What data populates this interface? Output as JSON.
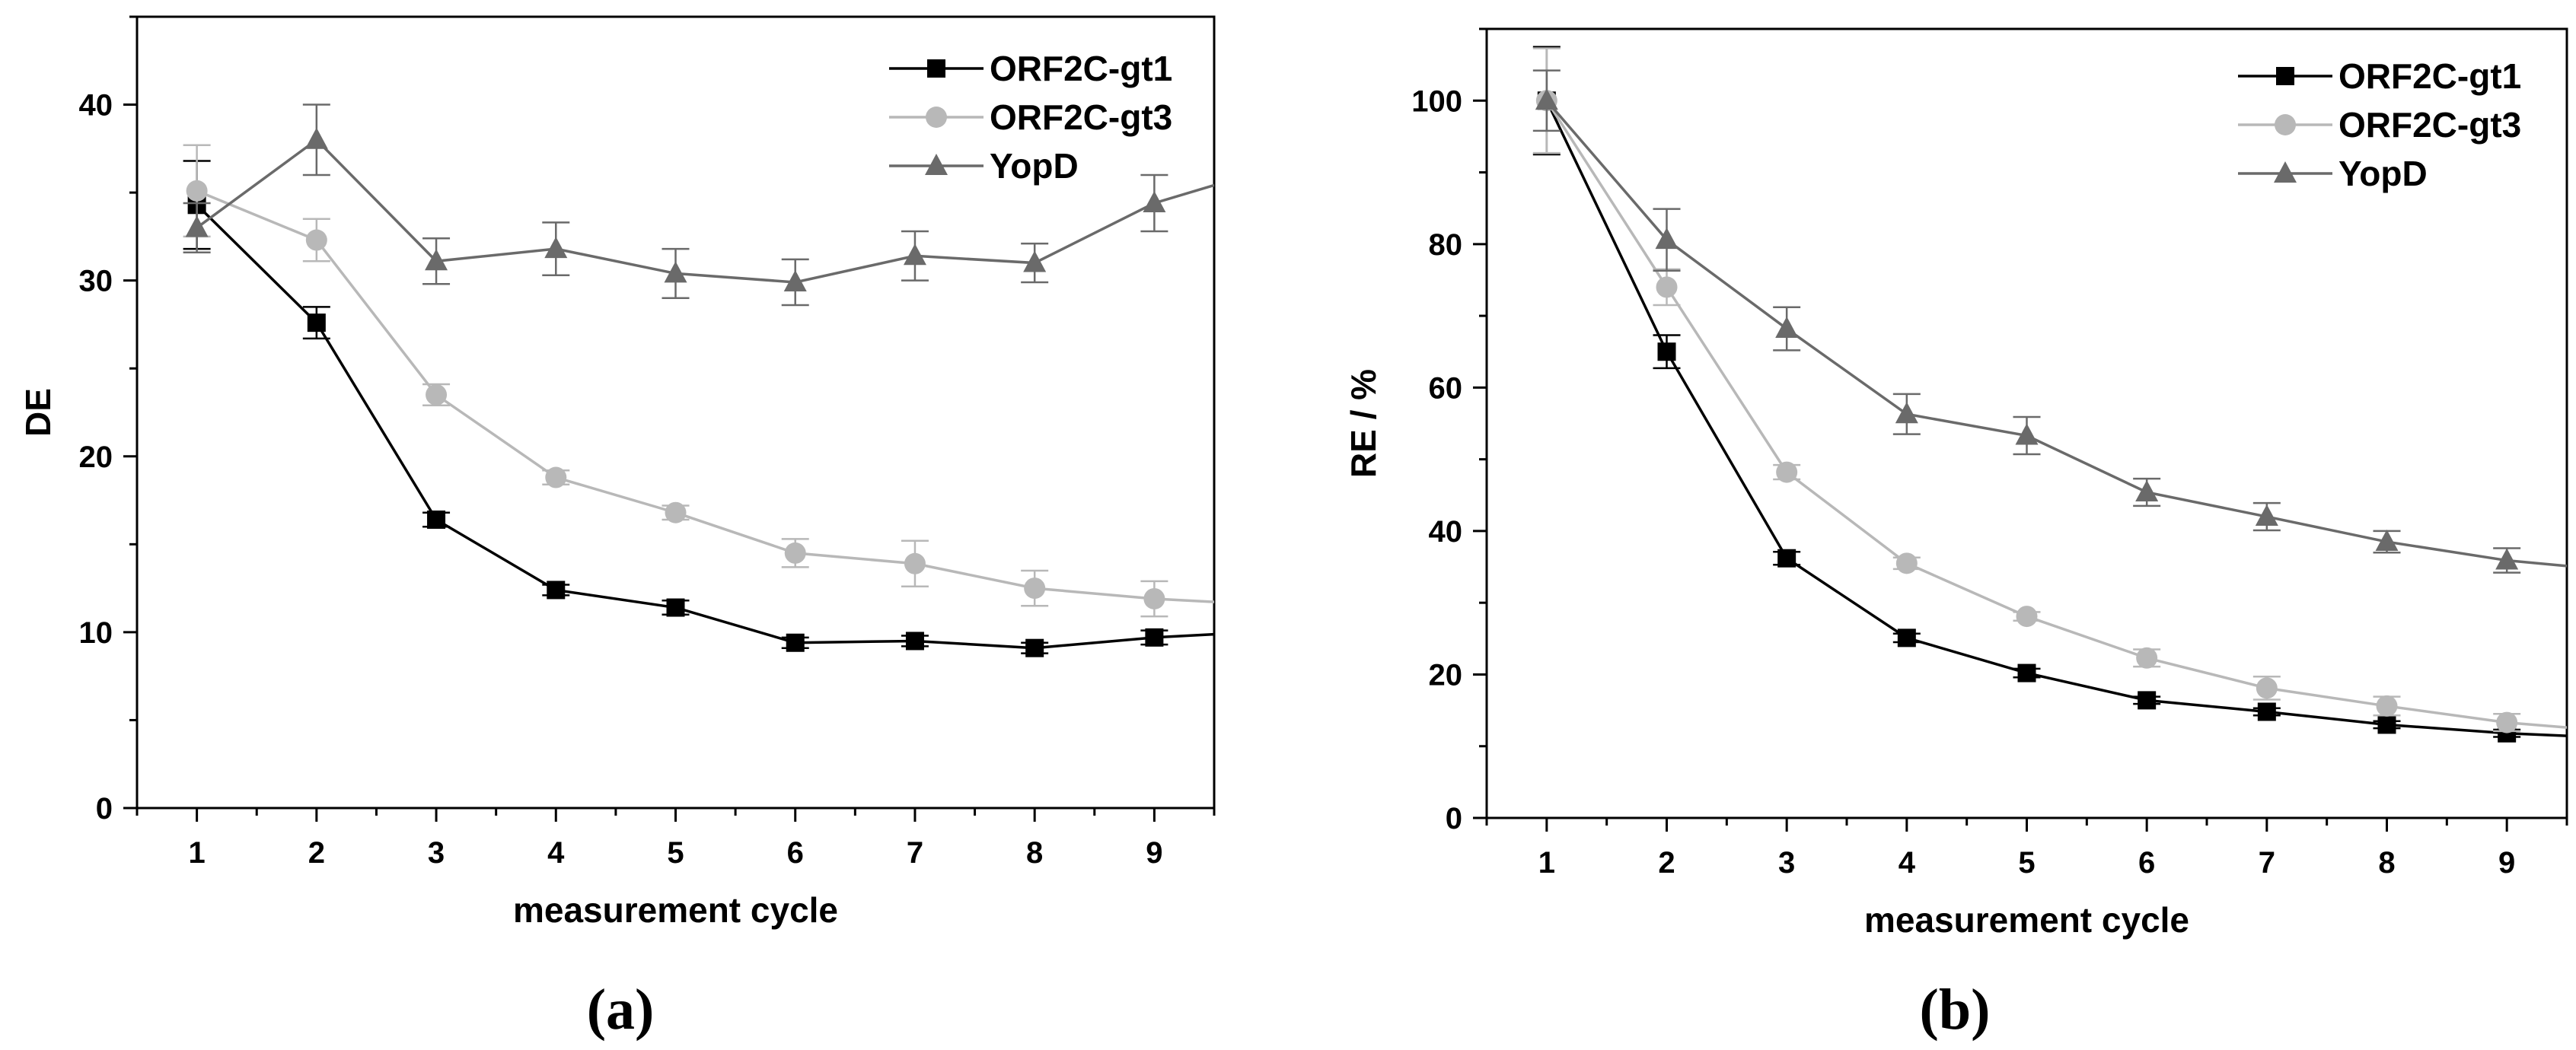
{
  "chart_data": [
    {
      "type": "line",
      "panel_label": "(a)",
      "xlabel": "measurement cycle",
      "ylabel": "DE",
      "x": [
        1,
        2,
        3,
        4,
        5,
        6,
        7,
        8,
        9
      ],
      "xlim": [
        0.5,
        9.5
      ],
      "ylim": [
        0,
        45
      ],
      "xticks": [
        1,
        2,
        3,
        4,
        5,
        6,
        7,
        8,
        9
      ],
      "yticks": [
        0,
        10,
        20,
        30,
        40
      ],
      "legend_position": "top-right",
      "series": [
        {
          "name": "ORF2C-gt1",
          "color": "#000000",
          "marker": "square",
          "values": [
            34.3,
            27.6,
            16.4,
            12.4,
            11.4,
            9.4,
            9.5,
            9.1,
            9.7
          ],
          "errors": [
            2.5,
            0.9,
            0.4,
            0.3,
            0.4,
            0.3,
            0.3,
            0.3,
            0.4
          ]
        },
        {
          "name": "ORF2C-gt3",
          "color": "#b8b8b8",
          "marker": "circle",
          "values": [
            35.1,
            32.3,
            23.5,
            18.8,
            16.8,
            14.5,
            13.9,
            12.5,
            11.9
          ],
          "errors": [
            2.6,
            1.2,
            0.6,
            0.4,
            0.4,
            0.8,
            1.3,
            1.0,
            1.0
          ]
        },
        {
          "name": "YopD",
          "color": "#6a6a6a",
          "marker": "triangle",
          "values": [
            33.0,
            38.0,
            31.1,
            31.8,
            30.4,
            29.9,
            31.4,
            31.0,
            34.4
          ],
          "errors": [
            1.4,
            2.0,
            1.3,
            1.5,
            1.4,
            1.3,
            1.4,
            1.1,
            1.6
          ]
        }
      ]
    },
    {
      "type": "line",
      "panel_label": "(b)",
      "xlabel": "measurement cycle",
      "ylabel": "RE / %",
      "x": [
        1,
        2,
        3,
        4,
        5,
        6,
        7,
        8,
        9
      ],
      "xlim": [
        0.5,
        9.5
      ],
      "ylim": [
        0,
        110
      ],
      "xticks": [
        1,
        2,
        3,
        4,
        5,
        6,
        7,
        8,
        9
      ],
      "yticks": [
        0,
        20,
        40,
        60,
        80,
        100
      ],
      "legend_position": "top-right",
      "series": [
        {
          "name": "ORF2C-gt1",
          "color": "#000000",
          "marker": "square",
          "values": [
            100,
            65,
            36.2,
            25.1,
            20.2,
            16.4,
            14.8,
            13,
            11.8
          ],
          "errors": [
            7.5,
            2.3,
            0.9,
            0.6,
            0.6,
            0.5,
            0.5,
            0.5,
            0.5
          ]
        },
        {
          "name": "ORF2C-gt3",
          "color": "#b8b8b8",
          "marker": "circle",
          "values": [
            100,
            74,
            48.2,
            35.5,
            28.1,
            22.3,
            18.1,
            15.6,
            13.3
          ],
          "errors": [
            7.3,
            2.5,
            1.0,
            0.8,
            0.6,
            1.2,
            1.6,
            1.3,
            1.2
          ]
        },
        {
          "name": "YopD",
          "color": "#6a6a6a",
          "marker": "triangle",
          "values": [
            100,
            80.6,
            68.2,
            56.3,
            53.3,
            45.4,
            42,
            38.5,
            35.9
          ],
          "errors": [
            4.2,
            4.3,
            3.0,
            2.8,
            2.6,
            1.9,
            1.9,
            1.5,
            1.7
          ]
        }
      ]
    }
  ]
}
